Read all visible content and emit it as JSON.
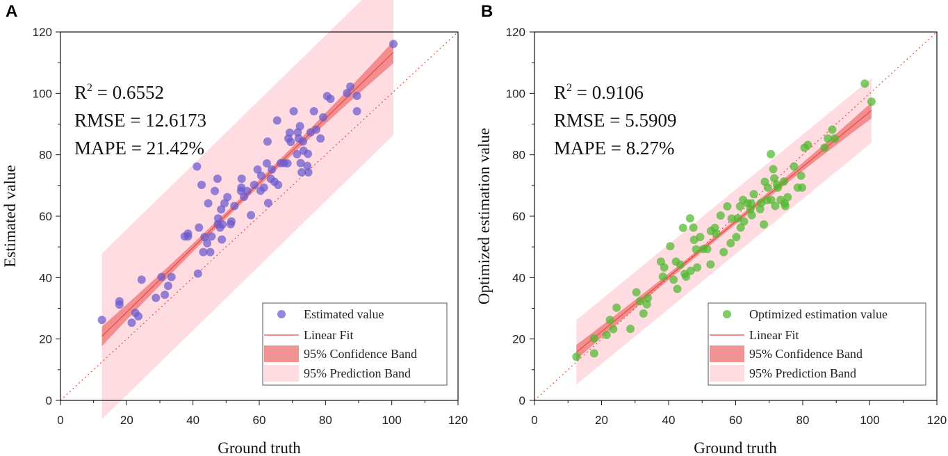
{
  "figure": {
    "background": "#ffffff"
  },
  "chart_data": [
    {
      "type": "scatter",
      "panel_label": "A",
      "xlabel": "Ground truth",
      "ylabel": "Estimated value",
      "xlim": [
        0,
        120
      ],
      "ylim": [
        0,
        120
      ],
      "xticks": [
        "0",
        "20",
        "40",
        "60",
        "80",
        "100",
        "120"
      ],
      "yticks": [
        "0",
        "20",
        "40",
        "60",
        "80",
        "100",
        "120"
      ],
      "stats": {
        "r2_label": "R",
        "r2_sup": "2",
        "r2_value": " = 0.6552",
        "rmse": "RMSE = 12.6173",
        "mape": "MAPE = 21.42%"
      },
      "fit": {
        "slope": 1.052,
        "intercept": 7.7,
        "x_range": [
          12.5,
          100.5
        ]
      },
      "confidence_band_halfwidth": [
        3.2,
        1.0,
        3.6
      ],
      "prediction_band_halfwidth": 27,
      "colors": {
        "points": "#6a5acd",
        "fit": "#e74c3c",
        "confidence": "#f08080",
        "prediction": "#ffc0cb",
        "identity": "#e74c3c"
      },
      "legend": {
        "points": "Estimated value",
        "fit": "Linear Fit",
        "confidence": "95% Confidence Band",
        "prediction": "95% Prediction Band"
      },
      "points": [
        [
          12.5,
          26.2
        ],
        [
          17.8,
          31.2
        ],
        [
          17.8,
          32.3
        ],
        [
          21.5,
          25.3
        ],
        [
          22.6,
          28.5
        ],
        [
          23.5,
          27.4
        ],
        [
          24.5,
          39.3
        ],
        [
          28.8,
          33.4
        ],
        [
          30.5,
          40.2
        ],
        [
          31.5,
          34.4
        ],
        [
          32.5,
          37.3
        ],
        [
          33.5,
          40.2
        ],
        [
          37.5,
          53.4
        ],
        [
          38.5,
          53.4
        ],
        [
          38.5,
          54.3
        ],
        [
          41.2,
          76.2
        ],
        [
          41.5,
          41.3
        ],
        [
          41.8,
          56.3
        ],
        [
          42.6,
          70.2
        ],
        [
          43.1,
          48.3
        ],
        [
          43.5,
          53.2
        ],
        [
          44.3,
          51.2
        ],
        [
          44.6,
          64.2
        ],
        [
          45.2,
          48.3
        ],
        [
          45.6,
          53.4
        ],
        [
          46.6,
          68.2
        ],
        [
          47.4,
          72.2
        ],
        [
          47.5,
          57.4
        ],
        [
          47.6,
          59.3
        ],
        [
          48.2,
          56.3
        ],
        [
          48.5,
          62.2
        ],
        [
          48.7,
          52.4
        ],
        [
          48.9,
          57.3
        ],
        [
          49.5,
          64.2
        ],
        [
          50.4,
          66.2
        ],
        [
          51.4,
          57.4
        ],
        [
          51.6,
          58.3
        ],
        [
          52.5,
          63.3
        ],
        [
          54.5,
          68.2
        ],
        [
          54.6,
          69.3
        ],
        [
          54.7,
          72.2
        ],
        [
          55.4,
          66.3
        ],
        [
          56.4,
          68.2
        ],
        [
          57.5,
          60.3
        ],
        [
          58.5,
          70.2
        ],
        [
          59.5,
          75.2
        ],
        [
          60.4,
          68.3
        ],
        [
          60.6,
          73.2
        ],
        [
          61.4,
          69.3
        ],
        [
          62.3,
          77.2
        ],
        [
          62.5,
          84.3
        ],
        [
          62.7,
          64.3
        ],
        [
          63.5,
          72.2
        ],
        [
          63.8,
          75.2
        ],
        [
          64.6,
          71.2
        ],
        [
          65.4,
          91.2
        ],
        [
          65.7,
          70.2
        ],
        [
          66.5,
          77.3
        ],
        [
          67.5,
          77.3
        ],
        [
          68.5,
          77.2
        ],
        [
          68.8,
          85.3
        ],
        [
          69.2,
          87.2
        ],
        [
          69.5,
          84.2
        ],
        [
          70.4,
          94.2
        ],
        [
          71.4,
          80.2
        ],
        [
          71.6,
          87.3
        ],
        [
          71.9,
          85.3
        ],
        [
          72.3,
          89.3
        ],
        [
          72.5,
          77.3
        ],
        [
          72.8,
          74.3
        ],
        [
          73.2,
          84.3
        ],
        [
          73.4,
          81.3
        ],
        [
          74.5,
          76.4
        ],
        [
          74.7,
          80.3
        ],
        [
          74.8,
          74.3
        ],
        [
          75.5,
          87.3
        ],
        [
          76.5,
          94.2
        ],
        [
          77.2,
          88.2
        ],
        [
          78.5,
          85.3
        ],
        [
          79.3,
          92.2
        ],
        [
          80.5,
          99.1
        ],
        [
          81.5,
          98.2
        ],
        [
          86.5,
          100.1
        ],
        [
          87.5,
          102.2
        ],
        [
          89.5,
          99.2
        ],
        [
          89.5,
          94.2
        ],
        [
          100.5,
          116.1
        ]
      ]
    },
    {
      "type": "scatter",
      "panel_label": "B",
      "xlabel": "Ground truth",
      "ylabel": "Optimized estimation value",
      "xlim": [
        0,
        120
      ],
      "ylim": [
        0,
        120
      ],
      "xticks": [
        "0",
        "20",
        "40",
        "60",
        "80",
        "100",
        "120"
      ],
      "yticks": [
        "0",
        "20",
        "40",
        "60",
        "80",
        "100",
        "120"
      ],
      "stats": {
        "r2_label": "R",
        "r2_sup": "2",
        "r2_value": " = 0.9106",
        "rmse": "RMSE = 5.5909",
        "mape": "MAPE = 8.27%"
      },
      "fit": {
        "slope": 0.895,
        "intercept": 4.5,
        "x_range": [
          12.5,
          100.5
        ]
      },
      "confidence_band_halfwidth": [
        2.4,
        0.8,
        2.6
      ],
      "prediction_band_halfwidth": 10.5,
      "colors": {
        "points": "#4db82e",
        "fit": "#e74c3c",
        "confidence": "#f08080",
        "prediction": "#ffc0cb",
        "identity": "#e74c3c"
      },
      "legend": {
        "points": "Optimized estimation value",
        "fit": "Linear Fit",
        "confidence": "95% Confidence Band",
        "prediction": "95% Prediction Band"
      },
      "points": [
        [
          12.5,
          14.2
        ],
        [
          17.8,
          20.2
        ],
        [
          17.8,
          15.3
        ],
        [
          21.5,
          21.3
        ],
        [
          22.5,
          26.2
        ],
        [
          23.5,
          23.2
        ],
        [
          24.5,
          30.2
        ],
        [
          28.6,
          23.3
        ],
        [
          30.4,
          35.2
        ],
        [
          31.5,
          32.3
        ],
        [
          32.5,
          28.3
        ],
        [
          33.5,
          31.3
        ],
        [
          33.8,
          33.3
        ],
        [
          37.7,
          45.2
        ],
        [
          38.3,
          40.3
        ],
        [
          38.7,
          43.3
        ],
        [
          40.5,
          50.2
        ],
        [
          41.5,
          39.3
        ],
        [
          42.2,
          45.2
        ],
        [
          42.6,
          36.3
        ],
        [
          43.5,
          44.2
        ],
        [
          44.3,
          56.2
        ],
        [
          44.8,
          41.2
        ],
        [
          45.2,
          40.3
        ],
        [
          46.4,
          59.3
        ],
        [
          46.6,
          42.2
        ],
        [
          47.4,
          56.3
        ],
        [
          47.6,
          52.3
        ],
        [
          48.2,
          49.2
        ],
        [
          48.5,
          43.3
        ],
        [
          49.4,
          53.2
        ],
        [
          50.3,
          49.3
        ],
        [
          51.5,
          49.3
        ],
        [
          52.5,
          44.3
        ],
        [
          52.6,
          55.2
        ],
        [
          53.8,
          56.2
        ],
        [
          54.2,
          54.3
        ],
        [
          55.5,
          60.2
        ],
        [
          56.4,
          48.3
        ],
        [
          57.5,
          63.2
        ],
        [
          58.5,
          51.2
        ],
        [
          58.8,
          59.2
        ],
        [
          60.2,
          53.2
        ],
        [
          60.6,
          59.3
        ],
        [
          61.3,
          63.2
        ],
        [
          61.5,
          56.3
        ],
        [
          62.2,
          65.3
        ],
        [
          62.5,
          58.3
        ],
        [
          63.5,
          64.2
        ],
        [
          64.4,
          62.2
        ],
        [
          64.6,
          64.2
        ],
        [
          64.8,
          60.3
        ],
        [
          65.4,
          67.2
        ],
        [
          67.3,
          62.3
        ],
        [
          67.6,
          64.3
        ],
        [
          68.4,
          57.3
        ],
        [
          68.7,
          71.2
        ],
        [
          69.3,
          65.2
        ],
        [
          69.6,
          69.3
        ],
        [
          70.5,
          80.2
        ],
        [
          70.6,
          65.3
        ],
        [
          71.2,
          75.3
        ],
        [
          71.5,
          72.3
        ],
        [
          71.8,
          63.3
        ],
        [
          72.3,
          70.3
        ],
        [
          72.6,
          69.3
        ],
        [
          73.4,
          65.3
        ],
        [
          74.4,
          71.3
        ],
        [
          74.6,
          64.2
        ],
        [
          74.8,
          63.3
        ],
        [
          75.5,
          66.2
        ],
        [
          77.4,
          76.2
        ],
        [
          78.5,
          69.3
        ],
        [
          79.5,
          73.2
        ],
        [
          79.8,
          69.3
        ],
        [
          80.5,
          82.3
        ],
        [
          81.5,
          83.2
        ],
        [
          86.5,
          82.3
        ],
        [
          87.5,
          85.3
        ],
        [
          88.8,
          88.2
        ],
        [
          89.5,
          85.3
        ],
        [
          98.5,
          103.2
        ],
        [
          100.5,
          97.3
        ]
      ]
    }
  ]
}
